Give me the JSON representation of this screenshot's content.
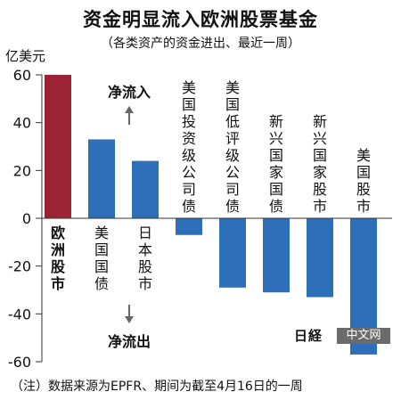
{
  "title": "资金明显流入欧洲股票基金",
  "subtitle": "（各类资产的资金进出、最近一周）",
  "note": "（注）数据来源为EPFR、期间为截至4月16日的一周",
  "watermark": {
    "logo": "日経",
    "tag": "中文网"
  },
  "chart_data": {
    "type": "bar",
    "ylabel": "亿美元",
    "ylim": [
      -60,
      60
    ],
    "yticks": [
      60,
      40,
      20,
      0,
      -20,
      -40,
      -60
    ],
    "categories": [
      "欧洲股市",
      "美国国债",
      "日本股市",
      "美国投资级公司债",
      "美国低评级公司债",
      "新兴国家国债",
      "新兴国家股市",
      "美国股市"
    ],
    "values": [
      60,
      33,
      24,
      -7,
      -29,
      -31,
      -33,
      -57
    ],
    "colors": {
      "highlight": "#9b2335",
      "default": "#2f6fba"
    },
    "highlight_index": 0,
    "annotations": {
      "inflow": "净流入",
      "outflow": "净流出"
    }
  }
}
